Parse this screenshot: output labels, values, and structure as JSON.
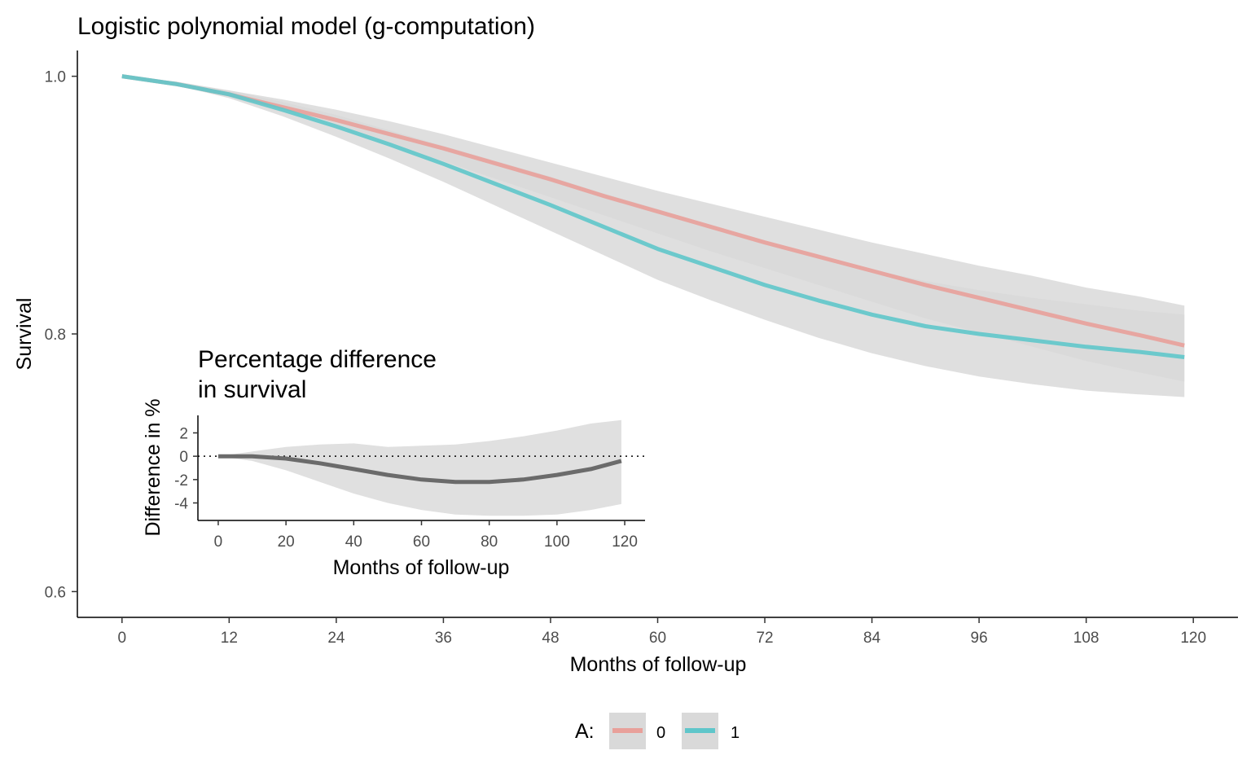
{
  "chart_data": [
    {
      "type": "line",
      "title": "Logistic polynomial model (g-computation)",
      "xlabel": "Months of follow-up",
      "ylabel": "Survival",
      "xlim": [
        -5,
        125
      ],
      "ylim": [
        0.58,
        1.02
      ],
      "xticks": [
        0,
        12,
        24,
        36,
        48,
        60,
        72,
        84,
        96,
        108,
        120
      ],
      "yticks": [
        0.6,
        0.8,
        1.0
      ],
      "ytick_labels": [
        "0.6",
        "0.8",
        "1.0"
      ],
      "grid": false,
      "legend": {
        "position": "bottom",
        "title": "A:",
        "labels": [
          "0",
          "1"
        ]
      },
      "colors": {
        "A0": "#E8A09A",
        "A1": "#5FC6CA",
        "band": "#D9D9D9"
      },
      "x": [
        0,
        6,
        12,
        18,
        24,
        30,
        36,
        42,
        48,
        54,
        60,
        66,
        72,
        78,
        84,
        90,
        96,
        102,
        108,
        114,
        119
      ],
      "series": [
        {
          "name": "0",
          "values": [
            1.0,
            0.994,
            0.986,
            0.976,
            0.966,
            0.955,
            0.944,
            0.932,
            0.92,
            0.907,
            0.895,
            0.883,
            0.871,
            0.86,
            0.849,
            0.838,
            0.828,
            0.818,
            0.808,
            0.799,
            0.791
          ],
          "lower": [
            1.0,
            0.993,
            0.984,
            0.972,
            0.96,
            0.947,
            0.934,
            0.92,
            0.906,
            0.892,
            0.878,
            0.864,
            0.851,
            0.838,
            0.825,
            0.812,
            0.801,
            0.79,
            0.779,
            0.77,
            0.763
          ],
          "upper": [
            1.0,
            0.995,
            0.989,
            0.982,
            0.974,
            0.965,
            0.955,
            0.944,
            0.933,
            0.922,
            0.911,
            0.901,
            0.891,
            0.881,
            0.871,
            0.862,
            0.853,
            0.845,
            0.836,
            0.829,
            0.822
          ]
        },
        {
          "name": "1",
          "values": [
            1.0,
            0.994,
            0.986,
            0.974,
            0.961,
            0.947,
            0.932,
            0.916,
            0.9,
            0.883,
            0.866,
            0.852,
            0.838,
            0.826,
            0.815,
            0.806,
            0.8,
            0.795,
            0.79,
            0.786,
            0.782
          ],
          "lower": [
            1.0,
            0.993,
            0.983,
            0.969,
            0.953,
            0.936,
            0.918,
            0.899,
            0.88,
            0.861,
            0.842,
            0.826,
            0.811,
            0.797,
            0.785,
            0.775,
            0.767,
            0.761,
            0.756,
            0.753,
            0.751
          ],
          "upper": [
            1.0,
            0.996,
            0.989,
            0.98,
            0.97,
            0.958,
            0.946,
            0.934,
            0.922,
            0.909,
            0.897,
            0.884,
            0.871,
            0.86,
            0.85,
            0.841,
            0.834,
            0.828,
            0.823,
            0.818,
            0.815
          ]
        }
      ]
    },
    {
      "type": "line",
      "title": "Percentage difference\nin survival",
      "xlabel": "Months of follow-up",
      "ylabel": "Difference in %",
      "xlim": [
        -6,
        126
      ],
      "ylim": [
        -5.5,
        3.5
      ],
      "xticks": [
        0,
        20,
        40,
        60,
        80,
        100,
        120
      ],
      "yticks": [
        -4,
        -2,
        0,
        2
      ],
      "grid": false,
      "reference_line": 0,
      "colors": {
        "line": "#6B6B6B",
        "band": "#E0E0E0",
        "reference": "#000000"
      },
      "x": [
        0,
        10,
        20,
        30,
        40,
        50,
        60,
        70,
        80,
        90,
        100,
        110,
        119
      ],
      "values": [
        0.0,
        0.0,
        -0.2,
        -0.6,
        -1.1,
        -1.6,
        -2.0,
        -2.2,
        -2.2,
        -2.0,
        -1.6,
        -1.1,
        -0.4
      ],
      "lower": [
        0.0,
        -0.4,
        -1.2,
        -2.2,
        -3.2,
        -4.0,
        -4.6,
        -5.0,
        -5.1,
        -5.1,
        -5.0,
        -4.6,
        -4.1
      ],
      "upper": [
        0.0,
        0.4,
        0.8,
        1.0,
        1.1,
        0.8,
        0.9,
        1.0,
        1.3,
        1.7,
        2.2,
        2.8,
        3.1
      ]
    }
  ]
}
